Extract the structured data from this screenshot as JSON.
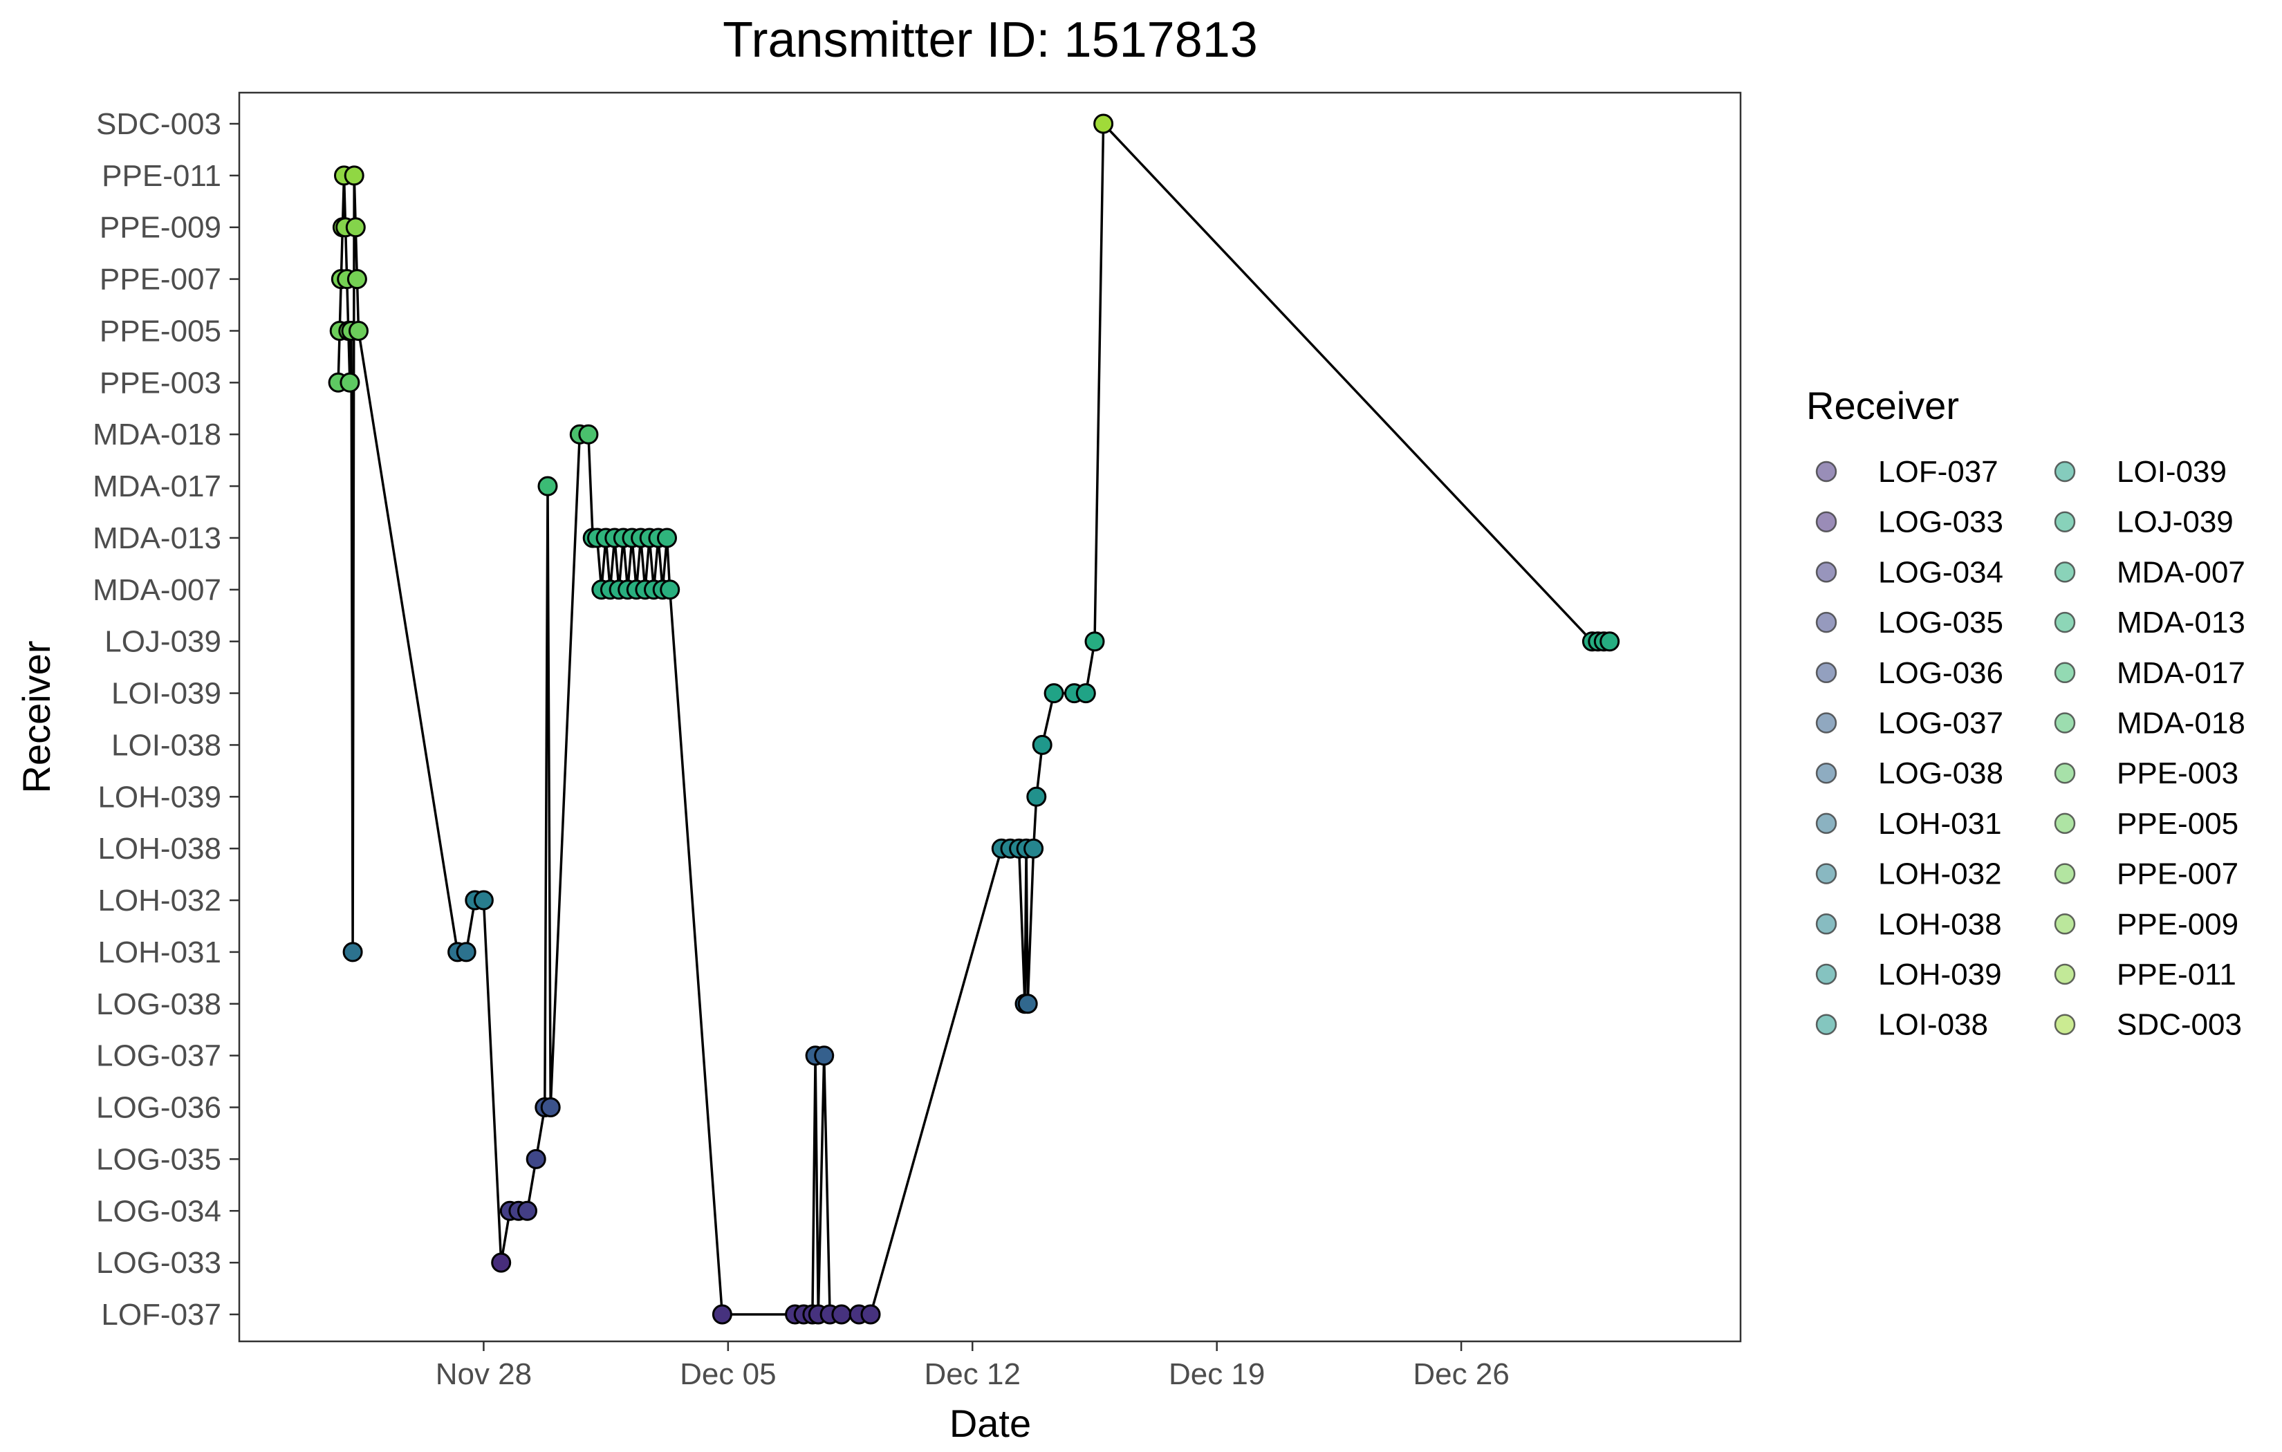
{
  "chart_data": {
    "type": "line",
    "title": "Transmitter ID: 1517813",
    "xlabel": "Date",
    "ylabel": "Receiver",
    "x_axis": {
      "type": "date",
      "range": [
        "2021-11-21",
        "2022-01-03"
      ],
      "ticks": [
        {
          "date": "2021-11-28",
          "label": "Nov 28"
        },
        {
          "date": "2021-12-05",
          "label": "Dec 05"
        },
        {
          "date": "2021-12-12",
          "label": "Dec 12"
        },
        {
          "date": "2021-12-19",
          "label": "Dec 19"
        },
        {
          "date": "2021-12-26",
          "label": "Dec 26"
        }
      ]
    },
    "categories": [
      "LOF-037",
      "LOG-033",
      "LOG-034",
      "LOG-035",
      "LOG-036",
      "LOG-037",
      "LOG-038",
      "LOH-031",
      "LOH-032",
      "LOH-038",
      "LOH-039",
      "LOI-038",
      "LOI-039",
      "LOJ-039",
      "MDA-007",
      "MDA-013",
      "MDA-017",
      "MDA-018",
      "PPE-003",
      "PPE-005",
      "PPE-007",
      "PPE-009",
      "PPE-011",
      "SDC-003"
    ],
    "legend": {
      "title": "Receiver",
      "placement": "right",
      "columns": 2,
      "entries": [
        "LOF-037",
        "LOG-033",
        "LOG-034",
        "LOG-035",
        "LOG-036",
        "LOG-037",
        "LOG-038",
        "LOH-031",
        "LOH-032",
        "LOH-038",
        "LOH-039",
        "LOI-038",
        "LOI-039",
        "LOJ-039",
        "MDA-007",
        "MDA-013",
        "MDA-017",
        "MDA-018",
        "PPE-003",
        "PPE-005",
        "PPE-007",
        "PPE-009",
        "PPE-011",
        "SDC-003"
      ]
    },
    "grid": false,
    "colors": [
      "#46327e",
      "#472d7b",
      "#433e85",
      "#3f4788",
      "#3b528b",
      "#35608d",
      "#31688e",
      "#2c728e",
      "#287d8e",
      "#25858e",
      "#21918c",
      "#1f988b",
      "#20a386",
      "#26ad81",
      "#29af7f",
      "#2fb47c",
      "#3bbb75",
      "#4ac16d",
      "#5ec962",
      "#6ccd5a",
      "#75d054",
      "#84d44b",
      "#90d743",
      "#a0da39"
    ],
    "series": [
      {
        "points": [
          {
            "t": "2021-11-23 20:00",
            "r": "PPE-003"
          },
          {
            "t": "2021-11-23 21:00",
            "r": "PPE-005"
          },
          {
            "t": "2021-11-23 22:00",
            "r": "PPE-007"
          },
          {
            "t": "2021-11-23 23:00",
            "r": "PPE-009"
          },
          {
            "t": "2021-11-24 00:00",
            "r": "PPE-011"
          },
          {
            "t": "2021-11-24 01:00",
            "r": "PPE-009"
          },
          {
            "t": "2021-11-24 02:00",
            "r": "PPE-007"
          },
          {
            "t": "2021-11-24 03:00",
            "r": "PPE-005"
          },
          {
            "t": "2021-11-24 04:00",
            "r": "PPE-003"
          },
          {
            "t": "2021-11-24 05:00",
            "r": "PPE-005"
          },
          {
            "t": "2021-11-24 06:00",
            "r": "LOH-031"
          },
          {
            "t": "2021-11-24 07:00",
            "r": "PPE-011"
          },
          {
            "t": "2021-11-24 08:00",
            "r": "PPE-009"
          },
          {
            "t": "2021-11-24 09:00",
            "r": "PPE-007"
          },
          {
            "t": "2021-11-24 10:00",
            "r": "PPE-005"
          },
          {
            "t": "2021-11-27 06:00",
            "r": "LOH-031"
          },
          {
            "t": "2021-11-27 12:00",
            "r": "LOH-031"
          },
          {
            "t": "2021-11-27 18:00",
            "r": "LOH-032"
          },
          {
            "t": "2021-11-28 00:00",
            "r": "LOH-032"
          },
          {
            "t": "2021-11-28 12:00",
            "r": "LOG-033"
          },
          {
            "t": "2021-11-28 18:00",
            "r": "LOG-034"
          },
          {
            "t": "2021-11-29 00:00",
            "r": "LOG-034"
          },
          {
            "t": "2021-11-29 06:00",
            "r": "LOG-034"
          },
          {
            "t": "2021-11-29 12:00",
            "r": "LOG-035"
          },
          {
            "t": "2021-11-29 18:00",
            "r": "LOG-036"
          },
          {
            "t": "2021-11-29 20:00",
            "r": "MDA-017"
          },
          {
            "t": "2021-11-29 22:00",
            "r": "LOG-036"
          },
          {
            "t": "2021-11-30 18:00",
            "r": "MDA-018"
          },
          {
            "t": "2021-12-01 00:00",
            "r": "MDA-018"
          },
          {
            "t": "2021-12-01 03:00",
            "r": "MDA-013"
          },
          {
            "t": "2021-12-01 06:00",
            "r": "MDA-013"
          },
          {
            "t": "2021-12-01 09:00",
            "r": "MDA-007"
          },
          {
            "t": "2021-12-01 12:00",
            "r": "MDA-013"
          },
          {
            "t": "2021-12-01 15:00",
            "r": "MDA-007"
          },
          {
            "t": "2021-12-01 18:00",
            "r": "MDA-013"
          },
          {
            "t": "2021-12-01 21:00",
            "r": "MDA-007"
          },
          {
            "t": "2021-12-02 00:00",
            "r": "MDA-013"
          },
          {
            "t": "2021-12-02 03:00",
            "r": "MDA-007"
          },
          {
            "t": "2021-12-02 06:00",
            "r": "MDA-013"
          },
          {
            "t": "2021-12-02 09:00",
            "r": "MDA-007"
          },
          {
            "t": "2021-12-02 12:00",
            "r": "MDA-013"
          },
          {
            "t": "2021-12-02 15:00",
            "r": "MDA-007"
          },
          {
            "t": "2021-12-02 18:00",
            "r": "MDA-013"
          },
          {
            "t": "2021-12-02 21:00",
            "r": "MDA-007"
          },
          {
            "t": "2021-12-03 00:00",
            "r": "MDA-013"
          },
          {
            "t": "2021-12-03 03:00",
            "r": "MDA-007"
          },
          {
            "t": "2021-12-03 06:00",
            "r": "MDA-013"
          },
          {
            "t": "2021-12-03 08:00",
            "r": "MDA-007"
          },
          {
            "t": "2021-12-04 20:00",
            "r": "LOF-037"
          },
          {
            "t": "2021-12-06 22:00",
            "r": "LOF-037"
          },
          {
            "t": "2021-12-07 04:00",
            "r": "LOF-037"
          },
          {
            "t": "2021-12-07 10:00",
            "r": "LOF-037"
          },
          {
            "t": "2021-12-07 12:00",
            "r": "LOG-037"
          },
          {
            "t": "2021-12-07 14:00",
            "r": "LOF-037"
          },
          {
            "t": "2021-12-07 18:00",
            "r": "LOG-037"
          },
          {
            "t": "2021-12-07 22:00",
            "r": "LOF-037"
          },
          {
            "t": "2021-12-08 06:00",
            "r": "LOF-037"
          },
          {
            "t": "2021-12-08 18:00",
            "r": "LOF-037"
          },
          {
            "t": "2021-12-09 02:00",
            "r": "LOF-037"
          },
          {
            "t": "2021-12-12 20:00",
            "r": "LOH-038"
          },
          {
            "t": "2021-12-13 02:00",
            "r": "LOH-038"
          },
          {
            "t": "2021-12-13 08:00",
            "r": "LOH-038"
          },
          {
            "t": "2021-12-13 12:00",
            "r": "LOG-038"
          },
          {
            "t": "2021-12-13 13:00",
            "r": "LOH-038"
          },
          {
            "t": "2021-12-13 14:00",
            "r": "LOG-038"
          },
          {
            "t": "2021-12-13 18:00",
            "r": "LOH-038"
          },
          {
            "t": "2021-12-13 20:00",
            "r": "LOH-039"
          },
          {
            "t": "2021-12-14 00:00",
            "r": "LOI-038"
          },
          {
            "t": "2021-12-14 08:00",
            "r": "LOI-039"
          },
          {
            "t": "2021-12-14 22:00",
            "r": "LOI-039"
          },
          {
            "t": "2021-12-15 06:00",
            "r": "LOI-039"
          },
          {
            "t": "2021-12-15 12:00",
            "r": "LOJ-039"
          },
          {
            "t": "2021-12-15 18:00",
            "r": "SDC-003"
          },
          {
            "t": "2021-12-29 18:00",
            "r": "LOJ-039"
          },
          {
            "t": "2021-12-29 22:00",
            "r": "LOJ-039"
          },
          {
            "t": "2021-12-30 02:00",
            "r": "LOJ-039"
          },
          {
            "t": "2021-12-30 06:00",
            "r": "LOJ-039"
          }
        ]
      }
    ]
  }
}
